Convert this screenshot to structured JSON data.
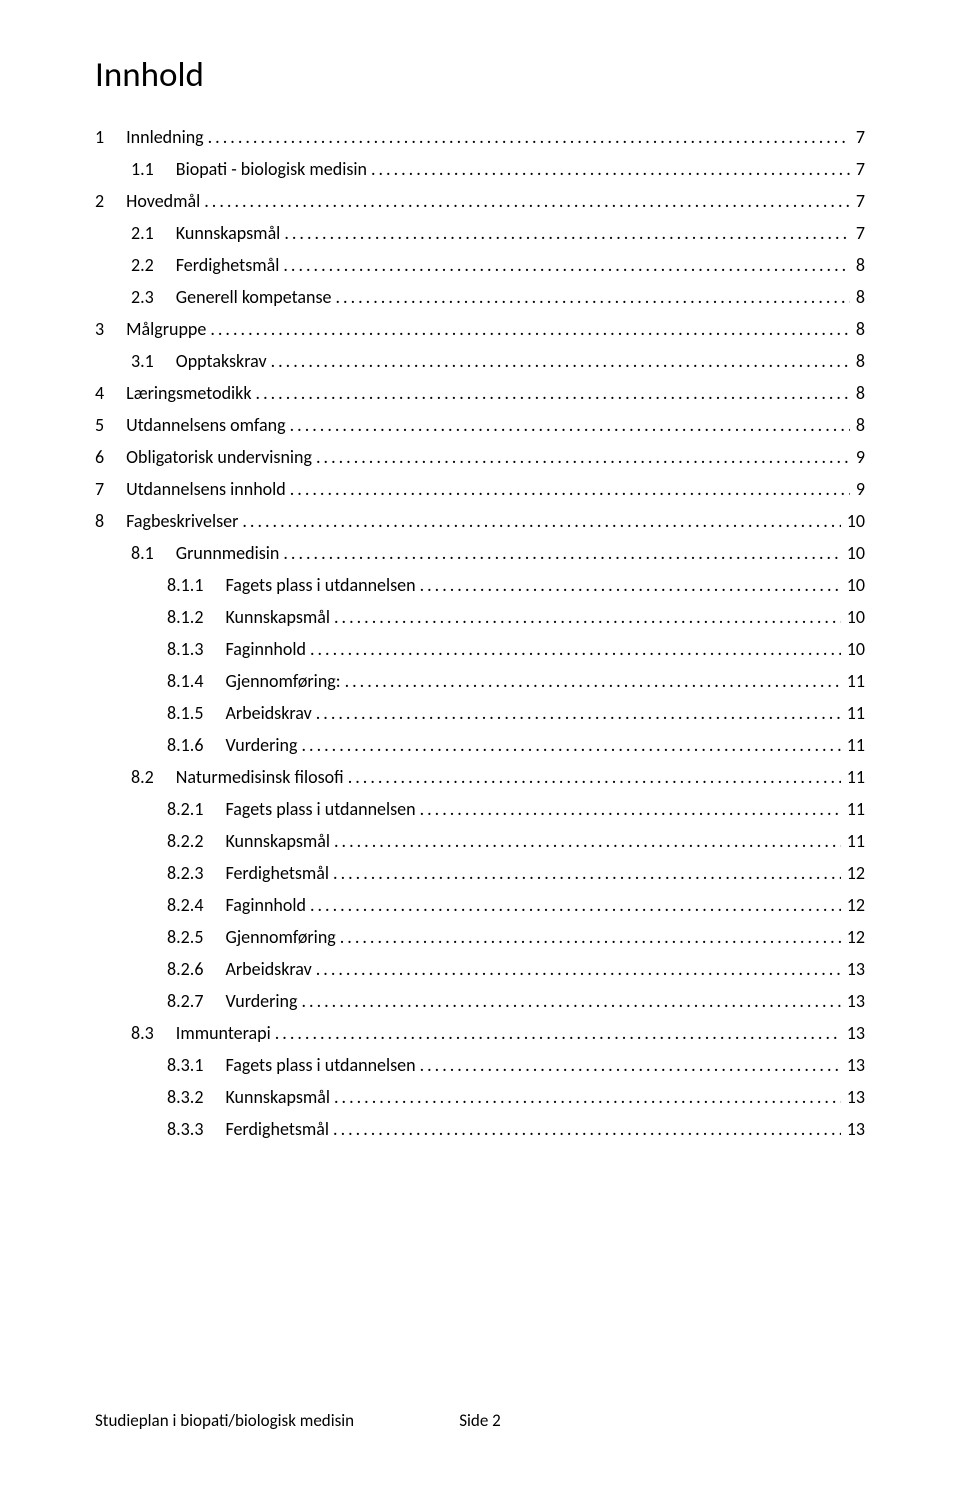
{
  "title": "Innhold",
  "footer_left": "Studieplan i biopati/biologisk medisin",
  "footer_center": "Side 2",
  "toc": [
    {
      "level": 1,
      "num": "1",
      "label": "Innledning",
      "page": "7"
    },
    {
      "level": 2,
      "num": "1.1",
      "label": "Biopati - biologisk medisin",
      "page": "7"
    },
    {
      "level": 1,
      "num": "2",
      "label": "Hovedmål",
      "page": "7"
    },
    {
      "level": 2,
      "num": "2.1",
      "label": "Kunnskapsmål",
      "page": "7"
    },
    {
      "level": 2,
      "num": "2.2",
      "label": "Ferdighetsmål",
      "page": "8"
    },
    {
      "level": 2,
      "num": "2.3",
      "label": "Generell kompetanse",
      "page": "8"
    },
    {
      "level": 1,
      "num": "3",
      "label": "Målgruppe",
      "page": "8"
    },
    {
      "level": 2,
      "num": "3.1",
      "label": "Opptakskrav",
      "page": "8"
    },
    {
      "level": 1,
      "num": "4",
      "label": "Læringsmetodikk",
      "page": "8"
    },
    {
      "level": 1,
      "num": "5",
      "label": "Utdannelsens omfang",
      "page": "8"
    },
    {
      "level": 1,
      "num": "6",
      "label": "Obligatorisk undervisning",
      "page": "9"
    },
    {
      "level": 1,
      "num": "7",
      "label": "Utdannelsens innhold",
      "page": "9"
    },
    {
      "level": 1,
      "num": "8",
      "label": "Fagbeskrivelser",
      "page": "10"
    },
    {
      "level": 2,
      "num": "8.1",
      "label": "Grunnmedisin",
      "page": "10"
    },
    {
      "level": 3,
      "num": "8.1.1",
      "label": "Fagets plass i utdannelsen",
      "page": "10"
    },
    {
      "level": 3,
      "num": "8.1.2",
      "label": "Kunnskapsmål",
      "page": "10"
    },
    {
      "level": 3,
      "num": "8.1.3",
      "label": "Faginnhold",
      "page": "10"
    },
    {
      "level": 3,
      "num": "8.1.4",
      "label": "Gjennomføring:",
      "page": "11"
    },
    {
      "level": 3,
      "num": "8.1.5",
      "label": "Arbeidskrav",
      "page": "11"
    },
    {
      "level": 3,
      "num": "8.1.6",
      "label": "Vurdering",
      "page": "11"
    },
    {
      "level": 2,
      "num": "8.2",
      "label": "Naturmedisinsk filosofi",
      "page": "11"
    },
    {
      "level": 3,
      "num": "8.2.1",
      "label": "Fagets plass i utdannelsen",
      "page": "11"
    },
    {
      "level": 3,
      "num": "8.2.2",
      "label": "Kunnskapsmål",
      "page": "11"
    },
    {
      "level": 3,
      "num": "8.2.3",
      "label": "Ferdighetsmål",
      "page": "12"
    },
    {
      "level": 3,
      "num": "8.2.4",
      "label": "Faginnhold",
      "page": "12"
    },
    {
      "level": 3,
      "num": "8.2.5",
      "label": "Gjennomføring",
      "page": "12"
    },
    {
      "level": 3,
      "num": "8.2.6",
      "label": "Arbeidskrav",
      "page": "13"
    },
    {
      "level": 3,
      "num": "8.2.7",
      "label": "Vurdering",
      "page": "13"
    },
    {
      "level": 2,
      "num": "8.3",
      "label": "Immunterapi",
      "page": "13"
    },
    {
      "level": 3,
      "num": "8.3.1",
      "label": "Fagets plass i utdannelsen",
      "page": "13"
    },
    {
      "level": 3,
      "num": "8.3.2",
      "label": "Kunnskapsmål",
      "page": "13"
    },
    {
      "level": 3,
      "num": "8.3.3",
      "label": "Ferdighetsmål",
      "page": "13"
    }
  ]
}
